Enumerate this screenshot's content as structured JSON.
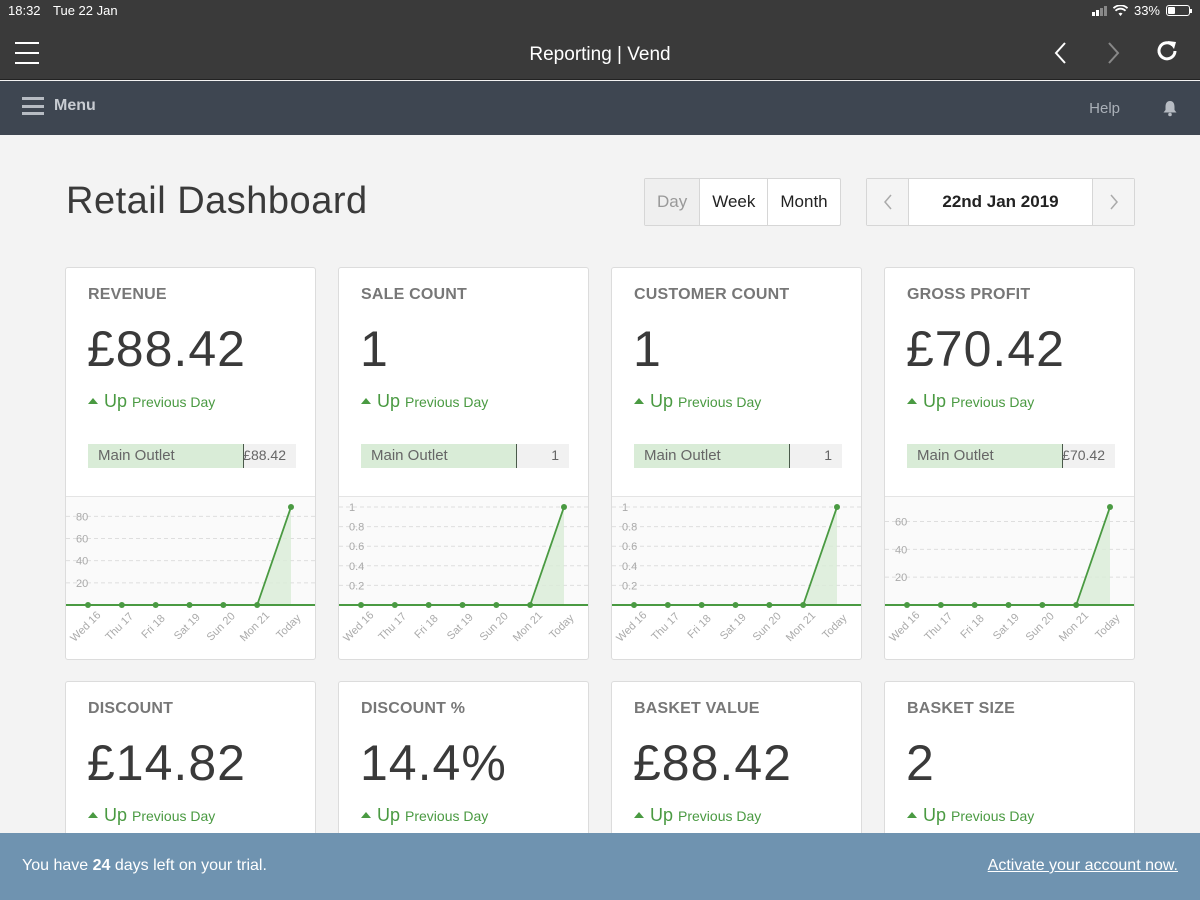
{
  "status_bar": {
    "time": "18:32",
    "date": "Tue 22 Jan",
    "battery": "33%"
  },
  "browser": {
    "title": "Reporting | Vend"
  },
  "app_bar": {
    "menu_label": "Menu",
    "help_label": "Help"
  },
  "page": {
    "title": "Retail Dashboard"
  },
  "period_selector": {
    "options": [
      "Day",
      "Week",
      "Month"
    ],
    "selected": "Day"
  },
  "date_nav": {
    "current": "22nd Jan 2019"
  },
  "x_labels": [
    "Wed 16",
    "Thu 17",
    "Fri 18",
    "Sat 19",
    "Sun 20",
    "Mon 21",
    "Today"
  ],
  "cards": [
    {
      "title": "REVENUE",
      "value": "£88.42",
      "trend_dir": "Up",
      "trend_compare": "Previous Day",
      "outlet": {
        "name": "Main Outlet",
        "amount": "£88.42",
        "share": 0.75
      },
      "chart_data": {
        "type": "area",
        "x": [
          "Wed 16",
          "Thu 17",
          "Fri 18",
          "Sat 19",
          "Sun 20",
          "Mon 21",
          "Today"
        ],
        "values": [
          0,
          0,
          0,
          0,
          0,
          0,
          88.42
        ],
        "ylim": [
          0,
          88.42
        ],
        "yticks": [
          20,
          40,
          60,
          80
        ]
      }
    },
    {
      "title": "SALE COUNT",
      "value": "1",
      "trend_dir": "Up",
      "trend_compare": "Previous Day",
      "outlet": {
        "name": "Main Outlet",
        "amount": "1",
        "share": 0.75
      },
      "chart_data": {
        "type": "area",
        "x": [
          "Wed 16",
          "Thu 17",
          "Fri 18",
          "Sat 19",
          "Sun 20",
          "Mon 21",
          "Today"
        ],
        "values": [
          0,
          0,
          0,
          0,
          0,
          0,
          1
        ],
        "ylim": [
          0,
          1
        ],
        "yticks": [
          0.2,
          0.4,
          0.6,
          0.8,
          1
        ]
      }
    },
    {
      "title": "CUSTOMER COUNT",
      "value": "1",
      "trend_dir": "Up",
      "trend_compare": "Previous Day",
      "outlet": {
        "name": "Main Outlet",
        "amount": "1",
        "share": 0.75
      },
      "chart_data": {
        "type": "area",
        "x": [
          "Wed 16",
          "Thu 17",
          "Fri 18",
          "Sat 19",
          "Sun 20",
          "Mon 21",
          "Today"
        ],
        "values": [
          0,
          0,
          0,
          0,
          0,
          0,
          1
        ],
        "ylim": [
          0,
          1
        ],
        "yticks": [
          0.2,
          0.4,
          0.6,
          0.8,
          1
        ]
      }
    },
    {
      "title": "GROSS PROFIT",
      "value": "£70.42",
      "trend_dir": "Up",
      "trend_compare": "Previous Day",
      "outlet": {
        "name": "Main Outlet",
        "amount": "£70.42",
        "share": 0.75
      },
      "chart_data": {
        "type": "area",
        "x": [
          "Wed 16",
          "Thu 17",
          "Fri 18",
          "Sat 19",
          "Sun 20",
          "Mon 21",
          "Today"
        ],
        "values": [
          0,
          0,
          0,
          0,
          0,
          0,
          70.42
        ],
        "ylim": [
          0,
          70.42
        ],
        "yticks": [
          20,
          40,
          60
        ]
      }
    },
    {
      "title": "DISCOUNT",
      "value": "£14.82",
      "trend_dir": "Up",
      "trend_compare": "Previous Day"
    },
    {
      "title": "DISCOUNT %",
      "value": "14.4%",
      "trend_dir": "Up",
      "trend_compare": "Previous Day"
    },
    {
      "title": "BASKET VALUE",
      "value": "£88.42",
      "trend_dir": "Up",
      "trend_compare": "Previous Day"
    },
    {
      "title": "BASKET SIZE",
      "value": "2",
      "trend_dir": "Up",
      "trend_compare": "Previous Day"
    }
  ],
  "trial": {
    "prefix": "You have ",
    "days": "24",
    "suffix": " days left on your trial.",
    "activate_label": "Activate your account now."
  },
  "colors": {
    "accent_green": "#4a9a42",
    "app_bar": "#3e4651",
    "trial_bar": "#6f93b0"
  }
}
